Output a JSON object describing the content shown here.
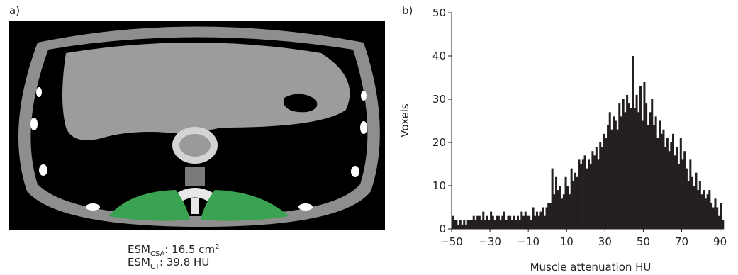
{
  "panel_a": {
    "label": "a)",
    "caption_line1": {
      "prefix": "ESM",
      "sub": "CSA",
      "value": ": 16.5 cm",
      "sup": "2"
    },
    "caption_line2": {
      "prefix": "ESM",
      "sub": "CT",
      "value": ": 39.8 HU"
    },
    "segmentation_color": "#3aa352"
  },
  "panel_b": {
    "label": "b)"
  },
  "chart_data": {
    "type": "bar",
    "title": "",
    "xlabel": "Muscle attenuation HU",
    "ylabel": "Voxels",
    "xlim": [
      -50,
      92
    ],
    "ylim": [
      0,
      50
    ],
    "xticks": [
      -50,
      -30,
      -10,
      10,
      30,
      50,
      70,
      90
    ],
    "xtick_labels": [
      "−50",
      "−30",
      "−10",
      "10",
      "30",
      "50",
      "70",
      "90"
    ],
    "yticks": [
      0,
      10,
      20,
      30,
      40,
      50
    ],
    "grid": false,
    "bar_color": "#231f20",
    "bin_start": -50,
    "bin_width": 1,
    "values": [
      3,
      2,
      2,
      1,
      2,
      1,
      2,
      1,
      2,
      2,
      2,
      3,
      2,
      3,
      3,
      2,
      4,
      2,
      3,
      2,
      4,
      3,
      2,
      3,
      3,
      2,
      3,
      4,
      2,
      3,
      3,
      2,
      3,
      2,
      3,
      2,
      4,
      3,
      4,
      3,
      3,
      2,
      5,
      3,
      4,
      3,
      4,
      5,
      3,
      5,
      6,
      6,
      14,
      8,
      12,
      9,
      10,
      7,
      8,
      12,
      10,
      8,
      14,
      11,
      13,
      12,
      16,
      15,
      16,
      17,
      14,
      16,
      15,
      18,
      17,
      19,
      16,
      20,
      19,
      22,
      21,
      24,
      27,
      23,
      26,
      25,
      23,
      29,
      26,
      30,
      27,
      31,
      29,
      28,
      40,
      28,
      31,
      27,
      33,
      25,
      34,
      29,
      24,
      27,
      30,
      24,
      26,
      21,
      25,
      22,
      23,
      19,
      21,
      18,
      20,
      22,
      17,
      19,
      15,
      21,
      16,
      18,
      14,
      11,
      16,
      12,
      10,
      13,
      9,
      11,
      8,
      9,
      7,
      8,
      9,
      6,
      5,
      7,
      5,
      3,
      6,
      2
    ]
  }
}
